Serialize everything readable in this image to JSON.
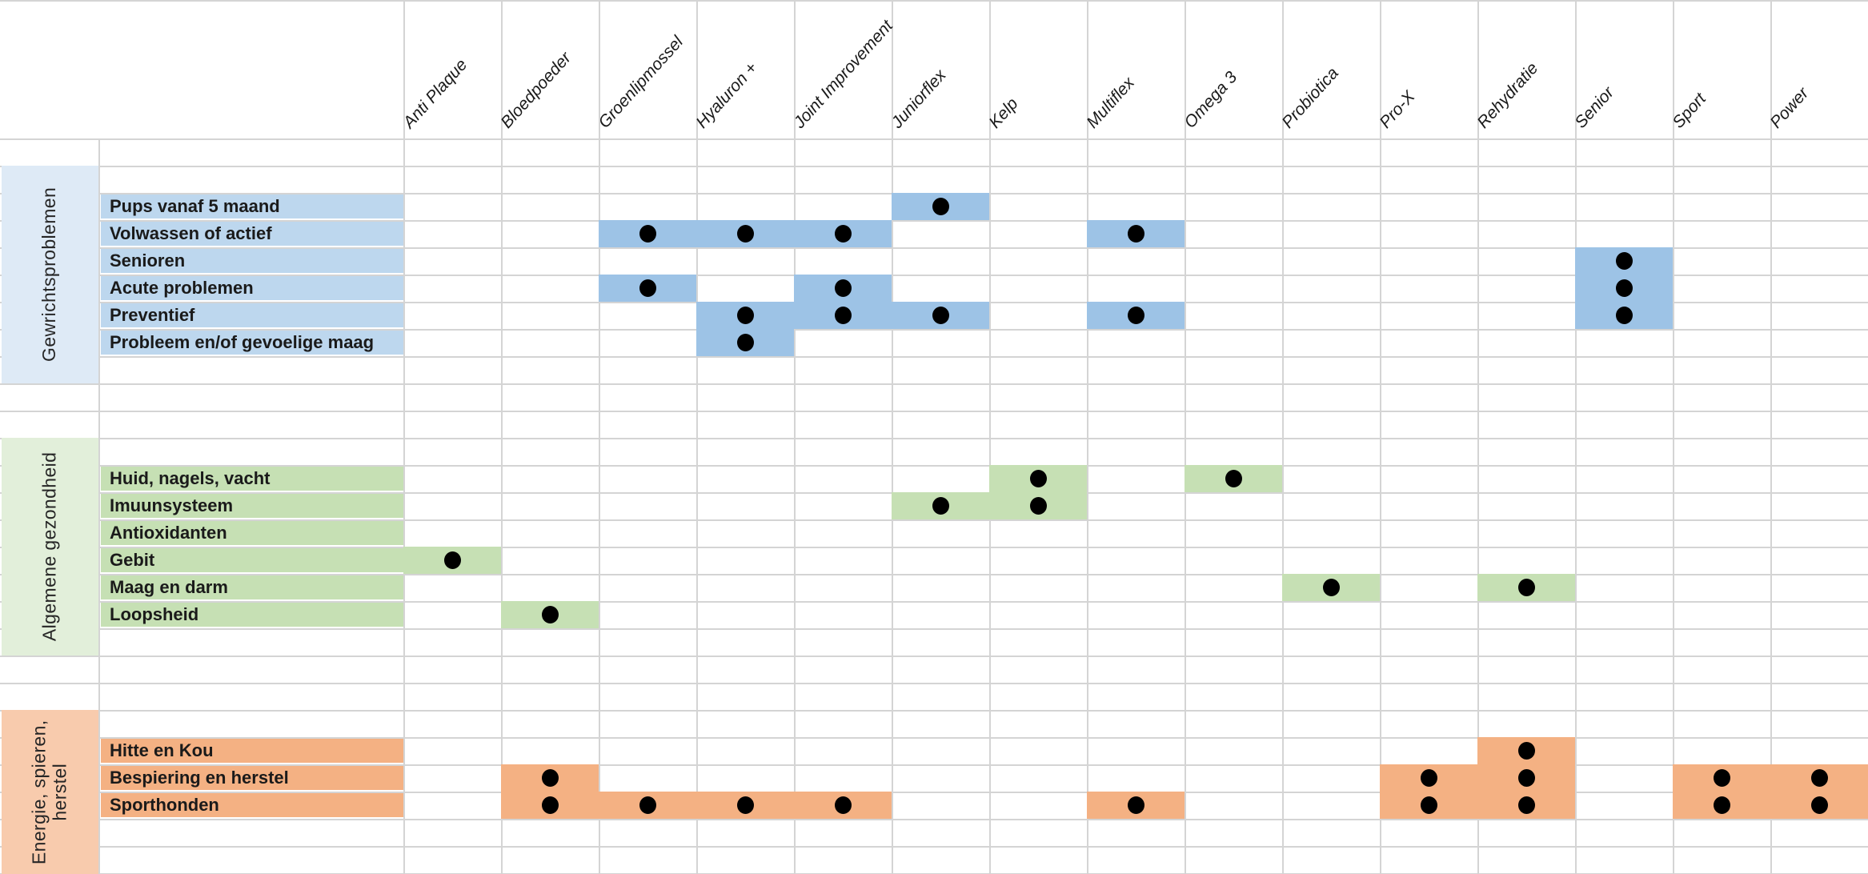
{
  "chart_data": {
    "type": "table",
    "title": "",
    "dot_color": "#000000",
    "grid_color": "#D4D4D4",
    "text_color": "#1A1A1A",
    "columns": [
      "Anti Plaque",
      "Bloedpoeder",
      "Groenlipmossel",
      "Hyaluron +",
      "Joint Improvement",
      "Juniorflex",
      "Kelp",
      "Multiflex",
      "Omega 3",
      "Probiotica",
      "Pro-X",
      "Rehydratie",
      "Senior",
      "Sport",
      "Power"
    ],
    "groups": [
      {
        "label": "Gewrichtsproblemen",
        "band_color": "#DEEAF6",
        "label_color": "#BDD7EE",
        "cell_color": "#9DC3E6",
        "rows": [
          {
            "label": "Pups vanaf 5 maand",
            "products": [
              "Juniorflex"
            ]
          },
          {
            "label": "Volwassen of actief",
            "products": [
              "Groenlipmossel",
              "Hyaluron +",
              "Joint Improvement",
              "Multiflex"
            ]
          },
          {
            "label": "Senioren",
            "products": [
              "Senior"
            ]
          },
          {
            "label": "Acute problemen",
            "products": [
              "Groenlipmossel",
              "Joint Improvement",
              "Senior"
            ]
          },
          {
            "label": "Preventief",
            "products": [
              "Hyaluron +",
              "Joint Improvement",
              "Juniorflex",
              "Multiflex",
              "Senior"
            ]
          },
          {
            "label": "Probleem en/of gevoelige maag",
            "products": [
              "Hyaluron +"
            ]
          }
        ]
      },
      {
        "label": "Algemene gezondheid",
        "band_color": "#E2EFDA",
        "label_color": "#C6E0B4",
        "cell_color": "#C6E0B4",
        "rows": [
          {
            "label": "Huid, nagels, vacht",
            "products": [
              "Kelp",
              "Omega 3"
            ]
          },
          {
            "label": "Imuunsysteem",
            "products": [
              "Juniorflex",
              "Kelp"
            ]
          },
          {
            "label": "Antioxidanten",
            "products": []
          },
          {
            "label": "Gebit",
            "products": [
              "Anti Plaque"
            ]
          },
          {
            "label": "Maag en darm",
            "products": [
              "Probiotica",
              "Rehydratie"
            ]
          },
          {
            "label": "Loopsheid",
            "products": [
              "Bloedpoeder"
            ]
          }
        ]
      },
      {
        "label": "Energie, spieren,\nherstel",
        "band_color": "#F8CBAD",
        "label_color": "#F4B183",
        "cell_color": "#F4B183",
        "rows": [
          {
            "label": "Hitte en Kou",
            "products": [
              "Rehydratie"
            ]
          },
          {
            "label": "Bespiering en herstel",
            "products": [
              "Bloedpoeder",
              "Pro-X",
              "Rehydratie",
              "Sport",
              "Power"
            ]
          },
          {
            "label": "Sporthonden",
            "products": [
              "Bloedpoeder",
              "Groenlipmossel",
              "Hyaluron +",
              "Joint Improvement",
              "Multiflex",
              "Pro-X",
              "Rehydratie",
              "Sport",
              "Power"
            ]
          }
        ]
      }
    ]
  }
}
